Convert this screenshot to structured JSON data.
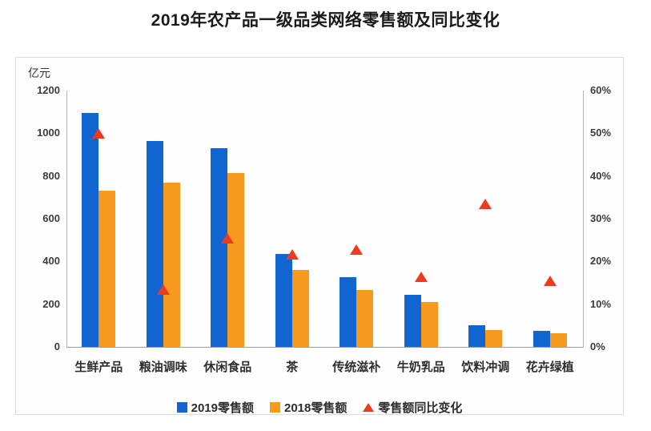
{
  "title": "2019年农产品一级品类网络零售额及同比变化",
  "chart_data": {
    "type": "bar",
    "title": "2019年农产品一级品类网络零售额及同比变化",
    "categories": [
      "生鲜产品",
      "粮油调味",
      "休闲食品",
      "茶",
      "传统滋补",
      "牛奶乳品",
      "饮料冲调",
      "花卉绿植"
    ],
    "series": [
      {
        "name": "2019零售额",
        "type": "bar",
        "axis": "left",
        "color": "#1065d1",
        "values": [
          1095,
          965,
          930,
          435,
          325,
          245,
          100,
          75
        ]
      },
      {
        "name": "2018零售额",
        "type": "bar",
        "axis": "left",
        "color": "#f89a20",
        "values": [
          730,
          770,
          815,
          360,
          265,
          210,
          78,
          62
        ]
      },
      {
        "name": "零售额同比变化",
        "type": "triangle",
        "axis": "right",
        "color": "#ed3b20",
        "values": [
          49.9,
          13.3,
          25.4,
          21.5,
          22.6,
          16.4,
          33.4,
          15.4
        ]
      }
    ],
    "left_axis": {
      "unit": "亿元",
      "min": 0,
      "max": 1200,
      "step": 200,
      "ticks_top_to_bottom": [
        "1200",
        "1000",
        "800",
        "600",
        "400",
        "200",
        "0"
      ]
    },
    "right_axis": {
      "min": 0,
      "max": 60,
      "step": 10,
      "ticks_top_to_bottom": [
        "60%",
        "50%",
        "40%",
        "30%",
        "20%",
        "10%",
        "0%"
      ]
    },
    "grid": false,
    "legend_position": "bottom"
  },
  "colors": {
    "bar_2019": "#1065d1",
    "bar_2018": "#f89a20",
    "triangle": "#ed3b20",
    "axis_line": "#b3b3b3",
    "card_border": "#dcdcdc",
    "tick_text": "#3c3c3c",
    "title_text": "#1b1b1b"
  }
}
